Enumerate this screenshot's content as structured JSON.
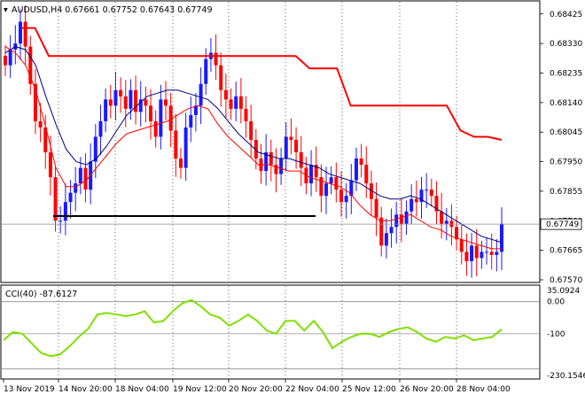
{
  "window": {
    "symbol_line": "AUDUSD,H4  0.67661 0.67752 0.67643 0.67749",
    "indicator_line": "CCI(40) -87.6127",
    "last_price_label": "0.67749"
  },
  "colors": {
    "bull_candle": "#1a1aff",
    "bear_candle": "#ff0000",
    "fast_ma": "#ff0000",
    "slow_ma": "#000080",
    "stop_line": "#ff0000",
    "support_line": "#000000",
    "cci_line": "#7fe000",
    "grid": "#000000",
    "current_price_line": "#8c8c8c"
  },
  "chart_data": [
    {
      "type": "candlestick",
      "title": "AUDUSD,H4",
      "y_axis_ticks": [
        "0.68425",
        "0.68330",
        "0.68235",
        "0.68140",
        "0.68045",
        "0.67950",
        "0.67855",
        "0.67760",
        "0.67665",
        "0.67570"
      ],
      "ylim": [
        0.6757,
        0.6843
      ],
      "x_axis_ticks": [
        "13 Nov 2019",
        "14 Nov 20:00",
        "18 Nov 04:00",
        "19 Nov 12:00",
        "20 Nov 20:00",
        "22 Nov 04:00",
        "25 Nov 12:00",
        "26 Nov 20:00",
        "28 Nov 04:00"
      ],
      "grid": "dotted vertical and horizontal",
      "current_price": 0.67749,
      "close_series": [
        0.6826,
        0.6831,
        0.6833,
        0.684,
        0.6832,
        0.682,
        0.6808,
        0.6806,
        0.6798,
        0.679,
        0.6776,
        0.6776,
        0.6782,
        0.6785,
        0.6788,
        0.6793,
        0.6786,
        0.6795,
        0.6803,
        0.6808,
        0.6815,
        0.6813,
        0.6818,
        0.6816,
        0.6812,
        0.6818,
        0.6811,
        0.6815,
        0.6813,
        0.6808,
        0.6803,
        0.6815,
        0.6813,
        0.6805,
        0.6796,
        0.6793,
        0.6806,
        0.681,
        0.6813,
        0.682,
        0.6828,
        0.683,
        0.6826,
        0.6818,
        0.6815,
        0.6812,
        0.6816,
        0.6812,
        0.6808,
        0.6802,
        0.6796,
        0.6792,
        0.6798,
        0.6794,
        0.6791,
        0.6796,
        0.6803,
        0.6802,
        0.6798,
        0.6793,
        0.6788,
        0.6794,
        0.679,
        0.6784,
        0.6788,
        0.679,
        0.6786,
        0.6782,
        0.6784,
        0.6789,
        0.6796,
        0.6794,
        0.6788,
        0.6783,
        0.6777,
        0.6768,
        0.6772,
        0.6774,
        0.6778,
        0.6775,
        0.6779,
        0.6783,
        0.6782,
        0.6786,
        0.6786,
        0.6784,
        0.6779,
        0.6775,
        0.6776,
        0.6774,
        0.677,
        0.6766,
        0.6763,
        0.6768,
        0.6764,
        0.6766,
        0.6766,
        0.6765,
        0.6766,
        0.6775
      ],
      "fast_ma_line": [
        0.6832,
        0.683,
        0.6826,
        0.6818,
        0.6806,
        0.6793,
        0.6787,
        0.6787,
        0.6789,
        0.6793,
        0.6797,
        0.6801,
        0.6804,
        0.6805,
        0.6806,
        0.6807,
        0.6808,
        0.681,
        0.6812,
        0.6813,
        0.6812,
        0.6807,
        0.6803,
        0.68,
        0.6797,
        0.6794,
        0.6794,
        0.6793,
        0.6792,
        0.6792,
        0.679,
        0.6789,
        0.6788,
        0.6787,
        0.6785,
        0.6781,
        0.6778,
        0.6776,
        0.6776,
        0.6777,
        0.6778,
        0.6776,
        0.6774,
        0.6773,
        0.6771,
        0.677,
        0.6769,
        0.6768,
        0.6767,
        0.6767
      ],
      "slow_ma_line": [
        0.683,
        0.6832,
        0.6831,
        0.6826,
        0.6816,
        0.6807,
        0.6799,
        0.6795,
        0.6794,
        0.6796,
        0.68,
        0.6805,
        0.681,
        0.6813,
        0.6816,
        0.6817,
        0.6818,
        0.6818,
        0.6817,
        0.6816,
        0.6815,
        0.6812,
        0.6808,
        0.6804,
        0.6801,
        0.6798,
        0.6797,
        0.6796,
        0.6796,
        0.6795,
        0.6794,
        0.6793,
        0.6791,
        0.679,
        0.6789,
        0.6788,
        0.6786,
        0.6784,
        0.6783,
        0.6783,
        0.6784,
        0.6783,
        0.6781,
        0.6779,
        0.6777,
        0.6775,
        0.6773,
        0.6771,
        0.677,
        0.6769
      ],
      "stop_line": [
        0.6838,
        0.6838,
        0.6829,
        0.6829,
        0.6829,
        0.6829,
        0.6829,
        0.6829,
        0.6829,
        0.6829,
        0.6829,
        0.6829,
        0.6829,
        0.6829,
        0.6829,
        0.6829,
        0.6829,
        0.6829,
        0.6829,
        0.6829,
        0.6829,
        0.6825,
        0.6825,
        0.6825,
        0.6813,
        0.6813,
        0.6813,
        0.6813,
        0.6813,
        0.6813,
        0.6813,
        0.6813,
        0.6805,
        0.6803,
        0.6803,
        0.6802
      ],
      "support_level": 0.67775
    },
    {
      "type": "line",
      "title": "CCI(40) -87.6127",
      "y_axis_ticks": [
        "35.0924",
        "0.00",
        "-100",
        "-230.1546"
      ],
      "ylim": [
        -230.1546,
        35.0924
      ],
      "reference_levels": [
        0,
        -100,
        -210
      ],
      "series": [
        {
          "name": "CCI(40)",
          "values": [
            -120,
            -95,
            -100,
            -130,
            -160,
            -170,
            -165,
            -140,
            -110,
            -85,
            -40,
            -35,
            -40,
            -45,
            -40,
            -30,
            -65,
            -60,
            -30,
            -5,
            5,
            -15,
            -40,
            -50,
            -75,
            -60,
            -40,
            -60,
            -90,
            -100,
            -60,
            -60,
            -90,
            -60,
            -95,
            -145,
            -125,
            -110,
            -100,
            -100,
            -110,
            -95,
            -85,
            -80,
            -95,
            -115,
            -125,
            -110,
            -115,
            -105,
            -120,
            -115,
            -110,
            -86
          ]
        }
      ]
    }
  ]
}
